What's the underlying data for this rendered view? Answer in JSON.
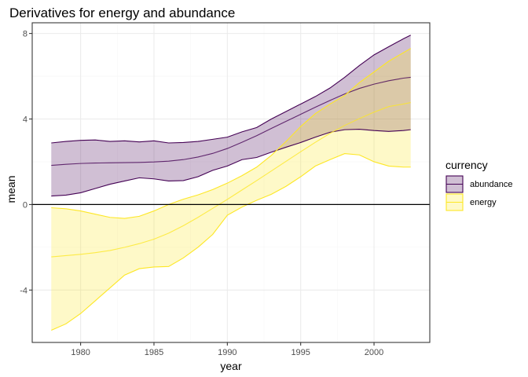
{
  "chart_data": {
    "type": "area",
    "title": "Derivatives for energy and abundance",
    "xlabel": "year",
    "ylabel": "mean",
    "xlim": [
      1976.7,
      2003.8
    ],
    "ylim": [
      -6.45,
      8.5
    ],
    "x_ticks": [
      1980,
      1985,
      1990,
      1995,
      2000
    ],
    "y_ticks": [
      -4,
      0,
      4,
      8
    ],
    "x_tick_labels": [
      "1980",
      "1985",
      "1990",
      "1995",
      "2000"
    ],
    "y_tick_labels": [
      "-4",
      "0",
      "4",
      "8"
    ],
    "hline": 0,
    "grid": true,
    "legend": {
      "title": "currency",
      "position": "right",
      "entries": [
        "abundance",
        "energy"
      ]
    },
    "series": [
      {
        "name": "abundance",
        "fill_color": "#440154",
        "line_color": "#440154",
        "fill_opacity": 0.25,
        "x": [
          1978,
          1979,
          1980,
          1981,
          1982,
          1983,
          1984,
          1985,
          1986,
          1987,
          1988,
          1989,
          1990,
          1991,
          1992,
          1993,
          1994,
          1995,
          1996,
          1997,
          1998,
          1999,
          2000,
          2001,
          2002,
          2002.5
        ],
        "mean": [
          1.83,
          1.88,
          1.92,
          1.94,
          1.95,
          1.96,
          1.97,
          1.99,
          2.03,
          2.1,
          2.22,
          2.39,
          2.62,
          2.91,
          3.22,
          3.56,
          3.89,
          4.22,
          4.55,
          4.87,
          5.17,
          5.43,
          5.63,
          5.79,
          5.91,
          5.95
        ],
        "lower": [
          0.4,
          0.44,
          0.55,
          0.75,
          0.95,
          1.1,
          1.25,
          1.2,
          1.1,
          1.12,
          1.3,
          1.6,
          1.8,
          2.1,
          2.2,
          2.45,
          2.68,
          2.9,
          3.15,
          3.38,
          3.5,
          3.52,
          3.46,
          3.42,
          3.46,
          3.5
        ],
        "upper": [
          2.88,
          2.95,
          3.0,
          3.02,
          2.95,
          2.98,
          2.93,
          2.98,
          2.88,
          2.9,
          2.95,
          3.05,
          3.15,
          3.4,
          3.6,
          4.0,
          4.35,
          4.7,
          5.05,
          5.45,
          5.95,
          6.5,
          7.0,
          7.38,
          7.75,
          7.92
        ]
      },
      {
        "name": "energy",
        "fill_color": "#FDE725",
        "line_color": "#FDE725",
        "fill_opacity": 0.25,
        "x": [
          1978,
          1979,
          1980,
          1981,
          1982,
          1983,
          1984,
          1985,
          1986,
          1987,
          1988,
          1989,
          1990,
          1991,
          1992,
          1993,
          1994,
          1995,
          1996,
          1997,
          1998,
          1999,
          2000,
          2001,
          2002,
          2002.5
        ],
        "mean": [
          -2.45,
          -2.39,
          -2.33,
          -2.25,
          -2.15,
          -2.0,
          -1.83,
          -1.62,
          -1.34,
          -0.99,
          -0.6,
          -0.18,
          0.24,
          0.68,
          1.12,
          1.57,
          2.02,
          2.47,
          2.91,
          3.33,
          3.7,
          4.02,
          4.32,
          4.58,
          4.7,
          4.77
        ],
        "lower": [
          -5.88,
          -5.58,
          -5.1,
          -4.5,
          -3.9,
          -3.3,
          -3.0,
          -2.92,
          -2.9,
          -2.5,
          -2.0,
          -1.4,
          -0.5,
          -0.12,
          0.2,
          0.48,
          0.85,
          1.3,
          1.8,
          2.1,
          2.38,
          2.32,
          2.0,
          1.8,
          1.75,
          1.75
        ],
        "upper": [
          -0.15,
          -0.2,
          -0.3,
          -0.45,
          -0.6,
          -0.65,
          -0.55,
          -0.3,
          0.0,
          0.25,
          0.45,
          0.7,
          1.0,
          1.35,
          1.75,
          2.3,
          2.95,
          3.65,
          4.25,
          4.7,
          5.1,
          5.7,
          6.2,
          6.7,
          7.1,
          7.3
        ]
      }
    ]
  }
}
